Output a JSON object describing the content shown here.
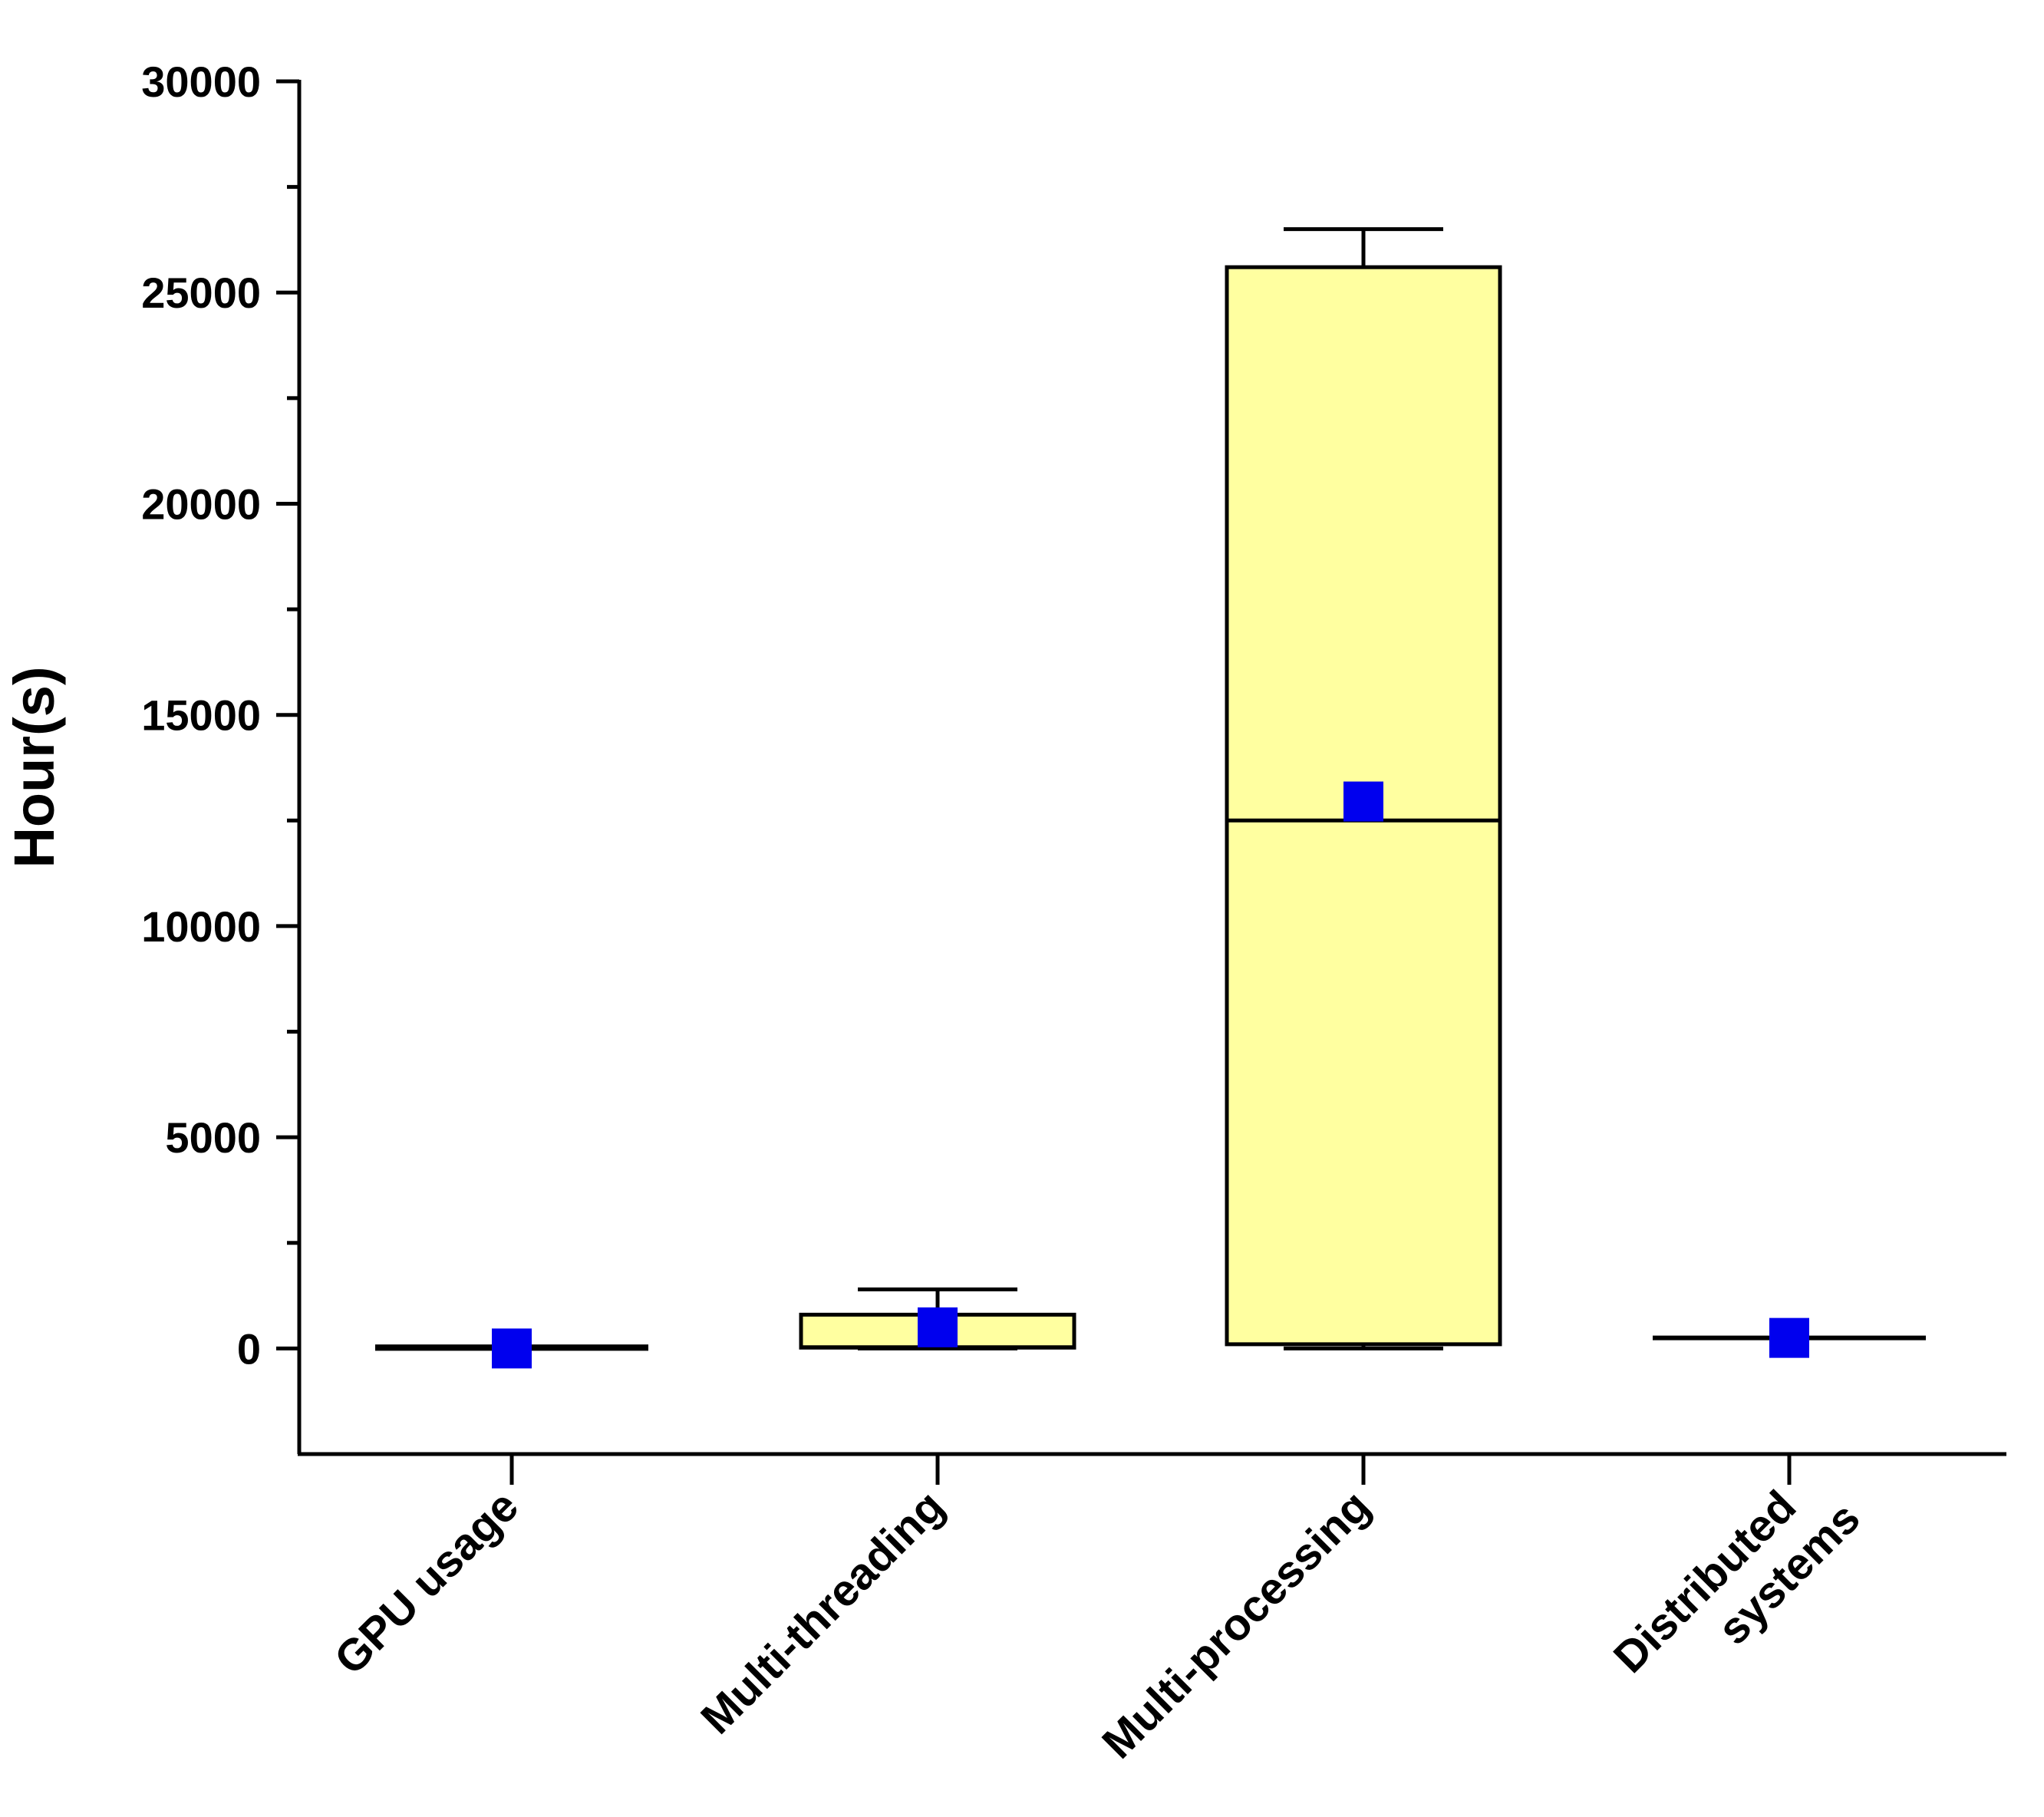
{
  "chart_data": {
    "type": "box",
    "ylabel": "Hour(s)",
    "ylim": [
      -2500,
      30000
    ],
    "yticks": [
      0,
      5000,
      10000,
      15000,
      20000,
      25000,
      30000
    ],
    "ytick_labels": [
      "0",
      "5000",
      "10000",
      "15000",
      "20000",
      "25000",
      "30000"
    ],
    "y_minor_step": 2500,
    "box_color": "#ffffa0",
    "mean_color": "#0000ee",
    "categories": [
      {
        "label": [
          "GPU usage"
        ],
        "min": 0,
        "q1": 0,
        "median": 20,
        "q3": 40,
        "max": 40,
        "mean": 0
      },
      {
        "label": [
          "Multi-threading"
        ],
        "min": 0,
        "q1": 20,
        "median": 30,
        "q3": 800,
        "max": 1400,
        "mean": 500
      },
      {
        "label": [
          "Multi-processing"
        ],
        "min": 0,
        "q1": 100,
        "median": 12500,
        "q3": 25600,
        "max": 26500,
        "mean": 12950
      },
      {
        "label": [
          "Distributed",
          "systems"
        ],
        "min": 250,
        "q1": 250,
        "median": 250,
        "q3": 250,
        "max": 250,
        "mean": 250
      }
    ]
  }
}
